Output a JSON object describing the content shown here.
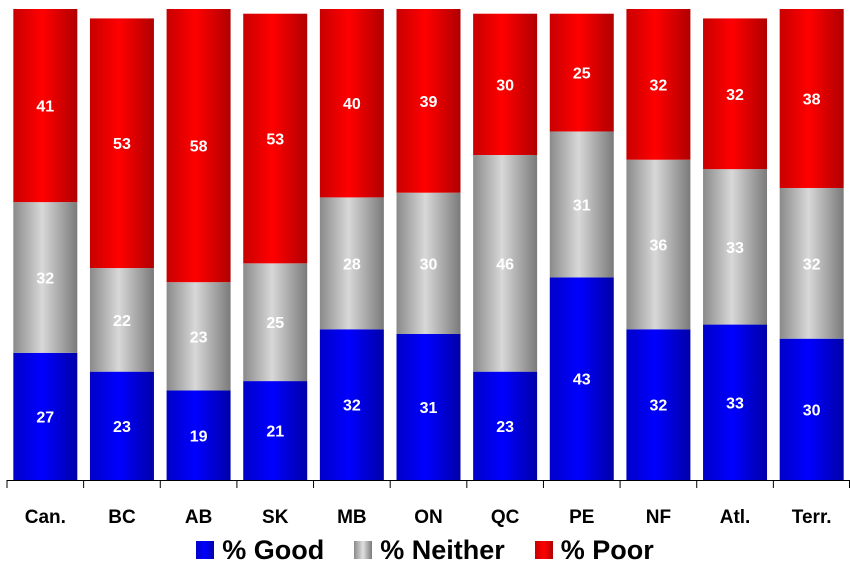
{
  "chart_data": {
    "type": "bar",
    "stacked": true,
    "percent": true,
    "categories": [
      "Can.",
      "BC",
      "AB",
      "SK",
      "MB",
      "ON",
      "QC",
      "PE",
      "NF",
      "Atl.",
      "Terr."
    ],
    "series": [
      {
        "name": "% Good",
        "color": "#0000ff",
        "values": [
          27,
          23,
          19,
          21,
          32,
          31,
          23,
          43,
          32,
          33,
          30
        ]
      },
      {
        "name": "% Neither",
        "color": "#9a9a9a",
        "values": [
          32,
          22,
          23,
          25,
          28,
          30,
          46,
          31,
          36,
          33,
          32
        ]
      },
      {
        "name": "% Poor",
        "color": "#ff0000",
        "values": [
          41,
          53,
          58,
          53,
          40,
          39,
          30,
          25,
          32,
          32,
          38
        ]
      }
    ],
    "ylim": [
      0,
      100
    ],
    "grid": false,
    "legend": "bottom",
    "data_labels": true
  }
}
